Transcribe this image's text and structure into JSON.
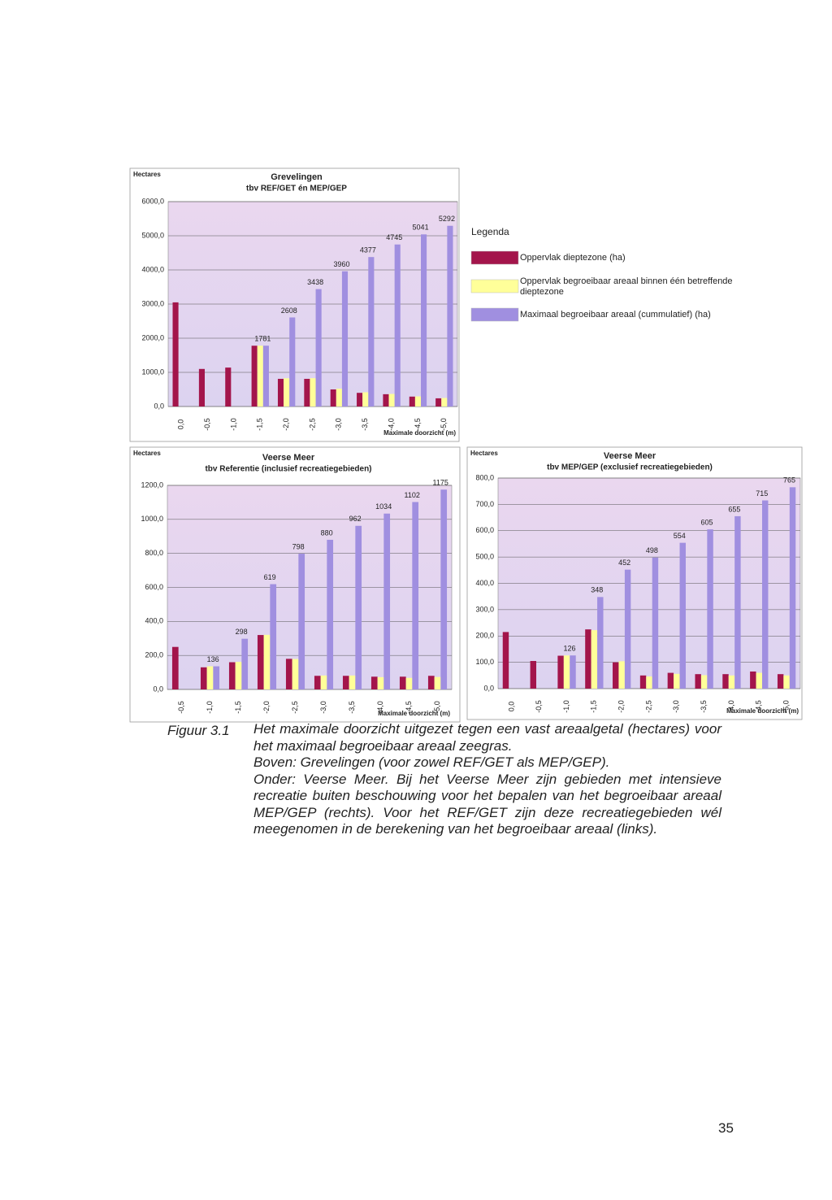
{
  "chart_data": [
    {
      "type": "bar",
      "title": "Grevelingen",
      "subtitle": "tbv REF/GET én MEP/GEP",
      "y_label": "Hectares",
      "x_label": "Maximale doorzicht (m)",
      "categories": [
        "0,0",
        "-0,5",
        "-1,0",
        "-1,5",
        "-2,0",
        "-2,5",
        "-3,0",
        "-3,5",
        "-4,0",
        "-4,5",
        "-5,0"
      ],
      "series": [
        {
          "name": "Oppervlak dieptezone (ha)",
          "color": "#a3154b",
          "values": [
            3050,
            1100,
            1140,
            1780,
            810,
            810,
            500,
            400,
            360,
            290,
            240
          ]
        },
        {
          "name": "Oppervlak begroeibaar areaal binnen één betreffende dieptezone",
          "color": "#ffff99",
          "values": [
            null,
            null,
            null,
            1781,
            827,
            830,
            522,
            417,
            368,
            296,
            251
          ]
        },
        {
          "name": "Maximaal begroeibaar areaal (cummulatief) (ha)",
          "color": "#a08fe0",
          "data_labels": true,
          "values": [
            null,
            null,
            null,
            1781,
            2608,
            3438,
            3960,
            4377,
            4745,
            5041,
            5292
          ]
        }
      ],
      "ylim": [
        0,
        6000
      ],
      "yticks": [
        {
          "value": 0,
          "label": "0,0"
        },
        {
          "value": 1000,
          "label": "1000,0"
        },
        {
          "value": 2000,
          "label": "2000,0"
        },
        {
          "value": 3000,
          "label": "3000,0"
        },
        {
          "value": 4000,
          "label": "4000,0"
        },
        {
          "value": 5000,
          "label": "5000,0"
        },
        {
          "value": 6000,
          "label": "6000,0"
        }
      ],
      "grid": true,
      "legend": "right",
      "legend_title": "Legenda"
    },
    {
      "type": "bar",
      "title": "Veerse Meer",
      "subtitle": "tbv Referentie (inclusief recreatiegebieden)",
      "y_label": "Hectares",
      "x_label": "Maximale doorzicht (m)",
      "categories": [
        "-0,5",
        "-1,0",
        "-1,5",
        "-2,0",
        "-2,5",
        "-3,0",
        "-3,5",
        "-4,0",
        "-4,5",
        "-5,0"
      ],
      "series": [
        {
          "color": "#a3154b",
          "values": [
            250,
            130,
            160,
            320,
            180,
            80,
            80,
            75,
            75,
            80
          ]
        },
        {
          "color": "#ffff99",
          "values": [
            null,
            136,
            162,
            321,
            179,
            82,
            82,
            72,
            68,
            73
          ]
        },
        {
          "color": "#a08fe0",
          "data_labels": true,
          "values": [
            null,
            136,
            298,
            619,
            798,
            880,
            962,
            1034,
            1102,
            1175
          ]
        }
      ],
      "ylim": [
        0,
        1200
      ],
      "yticks": [
        {
          "value": 0,
          "label": "0,0"
        },
        {
          "value": 200,
          "label": "200,0"
        },
        {
          "value": 400,
          "label": "400,0"
        },
        {
          "value": 600,
          "label": "600,0"
        },
        {
          "value": 800,
          "label": "800,0"
        },
        {
          "value": 1000,
          "label": "1000,0"
        },
        {
          "value": 1200,
          "label": "1200,0"
        }
      ],
      "grid": true
    },
    {
      "type": "bar",
      "title": "Veerse Meer",
      "subtitle": "tbv MEP/GEP (exclusief recreatiegebieden)",
      "y_label": "Hectares",
      "x_label": "Maximale doorzicht (m)",
      "categories": [
        "0,0",
        "-0,5",
        "-1,0",
        "-1,5",
        "-2,0",
        "-2,5",
        "-3,0",
        "-3,5",
        "-4,0",
        "-4,5",
        "-5,0"
      ],
      "series": [
        {
          "color": "#a3154b",
          "values": [
            215,
            105,
            125,
            225,
            100,
            50,
            60,
            55,
            55,
            65,
            55
          ]
        },
        {
          "color": "#ffff99",
          "values": [
            null,
            null,
            126,
            222,
            104,
            46,
            56,
            51,
            50,
            60,
            50
          ]
        },
        {
          "color": "#a08fe0",
          "data_labels": true,
          "values": [
            null,
            null,
            126,
            348,
            452,
            498,
            554,
            605,
            655,
            715,
            765
          ]
        }
      ],
      "ylim": [
        0,
        800
      ],
      "yticks": [
        {
          "value": 0,
          "label": "0,0"
        },
        {
          "value": 100,
          "label": "100,0"
        },
        {
          "value": 200,
          "label": "200,0"
        },
        {
          "value": 300,
          "label": "300,0"
        },
        {
          "value": 400,
          "label": "400,0"
        },
        {
          "value": 500,
          "label": "500,0"
        },
        {
          "value": 600,
          "label": "600,0"
        },
        {
          "value": 700,
          "label": "700,0"
        },
        {
          "value": 800,
          "label": "800,0"
        }
      ],
      "grid": true
    }
  ],
  "caption": {
    "label": "Figuur 3.1",
    "paragraphs": [
      "Het maximale doorzicht uitgezet tegen een vast areaalgetal (hectares) voor het maximaal begroeibaar areaal zeegras.",
      "Boven: Grevelingen (voor zowel REF/GET als MEP/GEP).",
      "Onder: Veerse Meer. Bij het Veerse Meer zijn gebieden met intensieve recreatie buiten beschouwing voor het bepalen van het begroeibaar areaal MEP/GEP (rechts). Voor het REF/GET zijn deze recreatiegebieden wél meegenomen in de berekening van het begroeibaar areaal (links)."
    ]
  },
  "page_number": "35"
}
